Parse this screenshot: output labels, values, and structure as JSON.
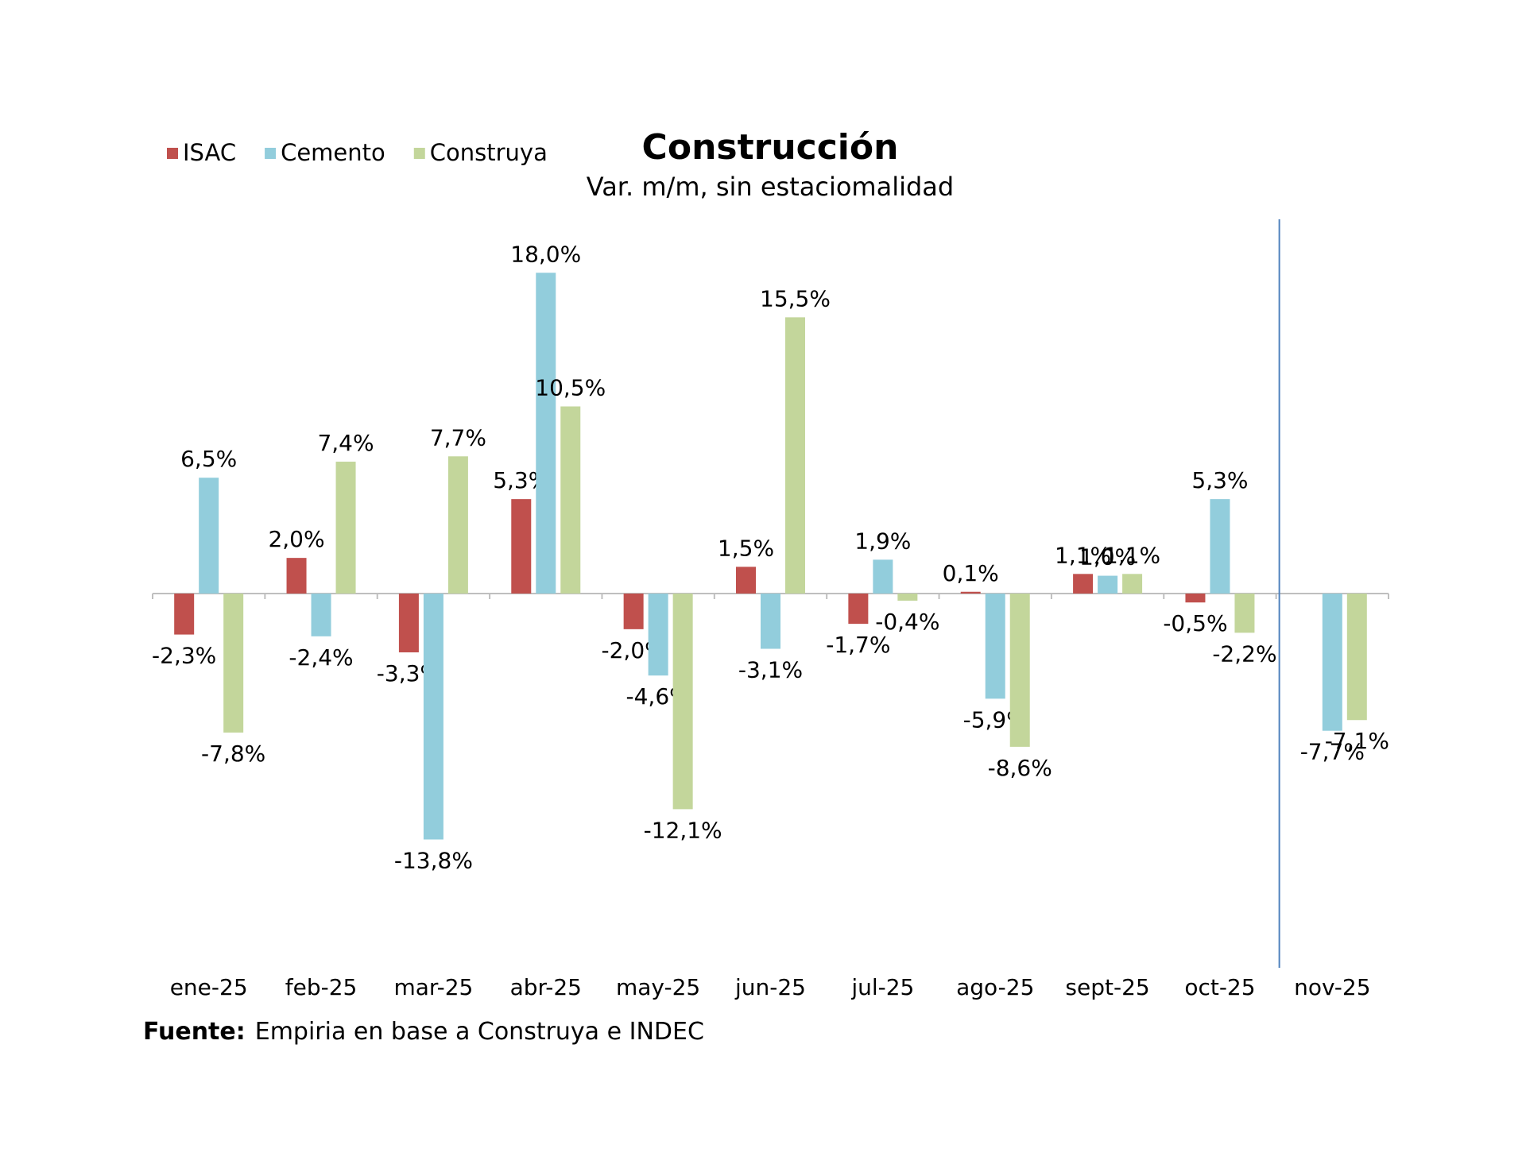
{
  "chart_data": {
    "type": "bar",
    "title": "Construcción",
    "subtitle": "Var. m/m, sin estaciomalidad",
    "categories": [
      "ene-25",
      "feb-25",
      "mar-25",
      "abr-25",
      "may-25",
      "jun-25",
      "jul-25",
      "ago-25",
      "sept-25",
      "oct-25",
      "nov-25"
    ],
    "series": [
      {
        "name": "ISAC",
        "color": "#c0504d",
        "values": [
          -2.3,
          2.0,
          -3.3,
          5.3,
          -2.0,
          1.5,
          -1.7,
          0.1,
          1.1,
          -0.5,
          null
        ],
        "value_labels": [
          "-2,3%",
          "2,0%",
          "-3,3%",
          "5,3%",
          "-2,0%",
          "1,5%",
          "-1,7%",
          "0,1%",
          "1,1%",
          "-0,5%",
          null
        ]
      },
      {
        "name": "Cemento",
        "color": "#92cddc",
        "values": [
          6.5,
          -2.4,
          -13.8,
          18.0,
          -4.6,
          -3.1,
          1.9,
          -5.9,
          1.0,
          5.3,
          -7.7
        ],
        "value_labels": [
          "6,5%",
          "-2,4%",
          "-13,8%",
          "18,0%",
          "-4,6%",
          "-3,1%",
          "1,9%",
          "-5,9%",
          "1,0%",
          "5,3%",
          "-7,7%"
        ]
      },
      {
        "name": "Construya",
        "color": "#c3d69b",
        "values": [
          -7.8,
          7.4,
          7.7,
          10.5,
          -12.1,
          15.5,
          -0.4,
          -8.6,
          1.1,
          -2.2,
          -7.1
        ],
        "value_labels": [
          "-7,8%",
          "7,4%",
          "7,7%",
          "10,5%",
          "-12,1%",
          "15,5%",
          "-0,4%",
          "-8,6%",
          "1,1%",
          "-2,2%",
          "-7,1%"
        ]
      }
    ],
    "ylim": [
      -21,
      21
    ],
    "legend": "top-left",
    "source": {
      "label": "Fuente:",
      "text": "Empiria en base a Construya e INDEC"
    }
  }
}
